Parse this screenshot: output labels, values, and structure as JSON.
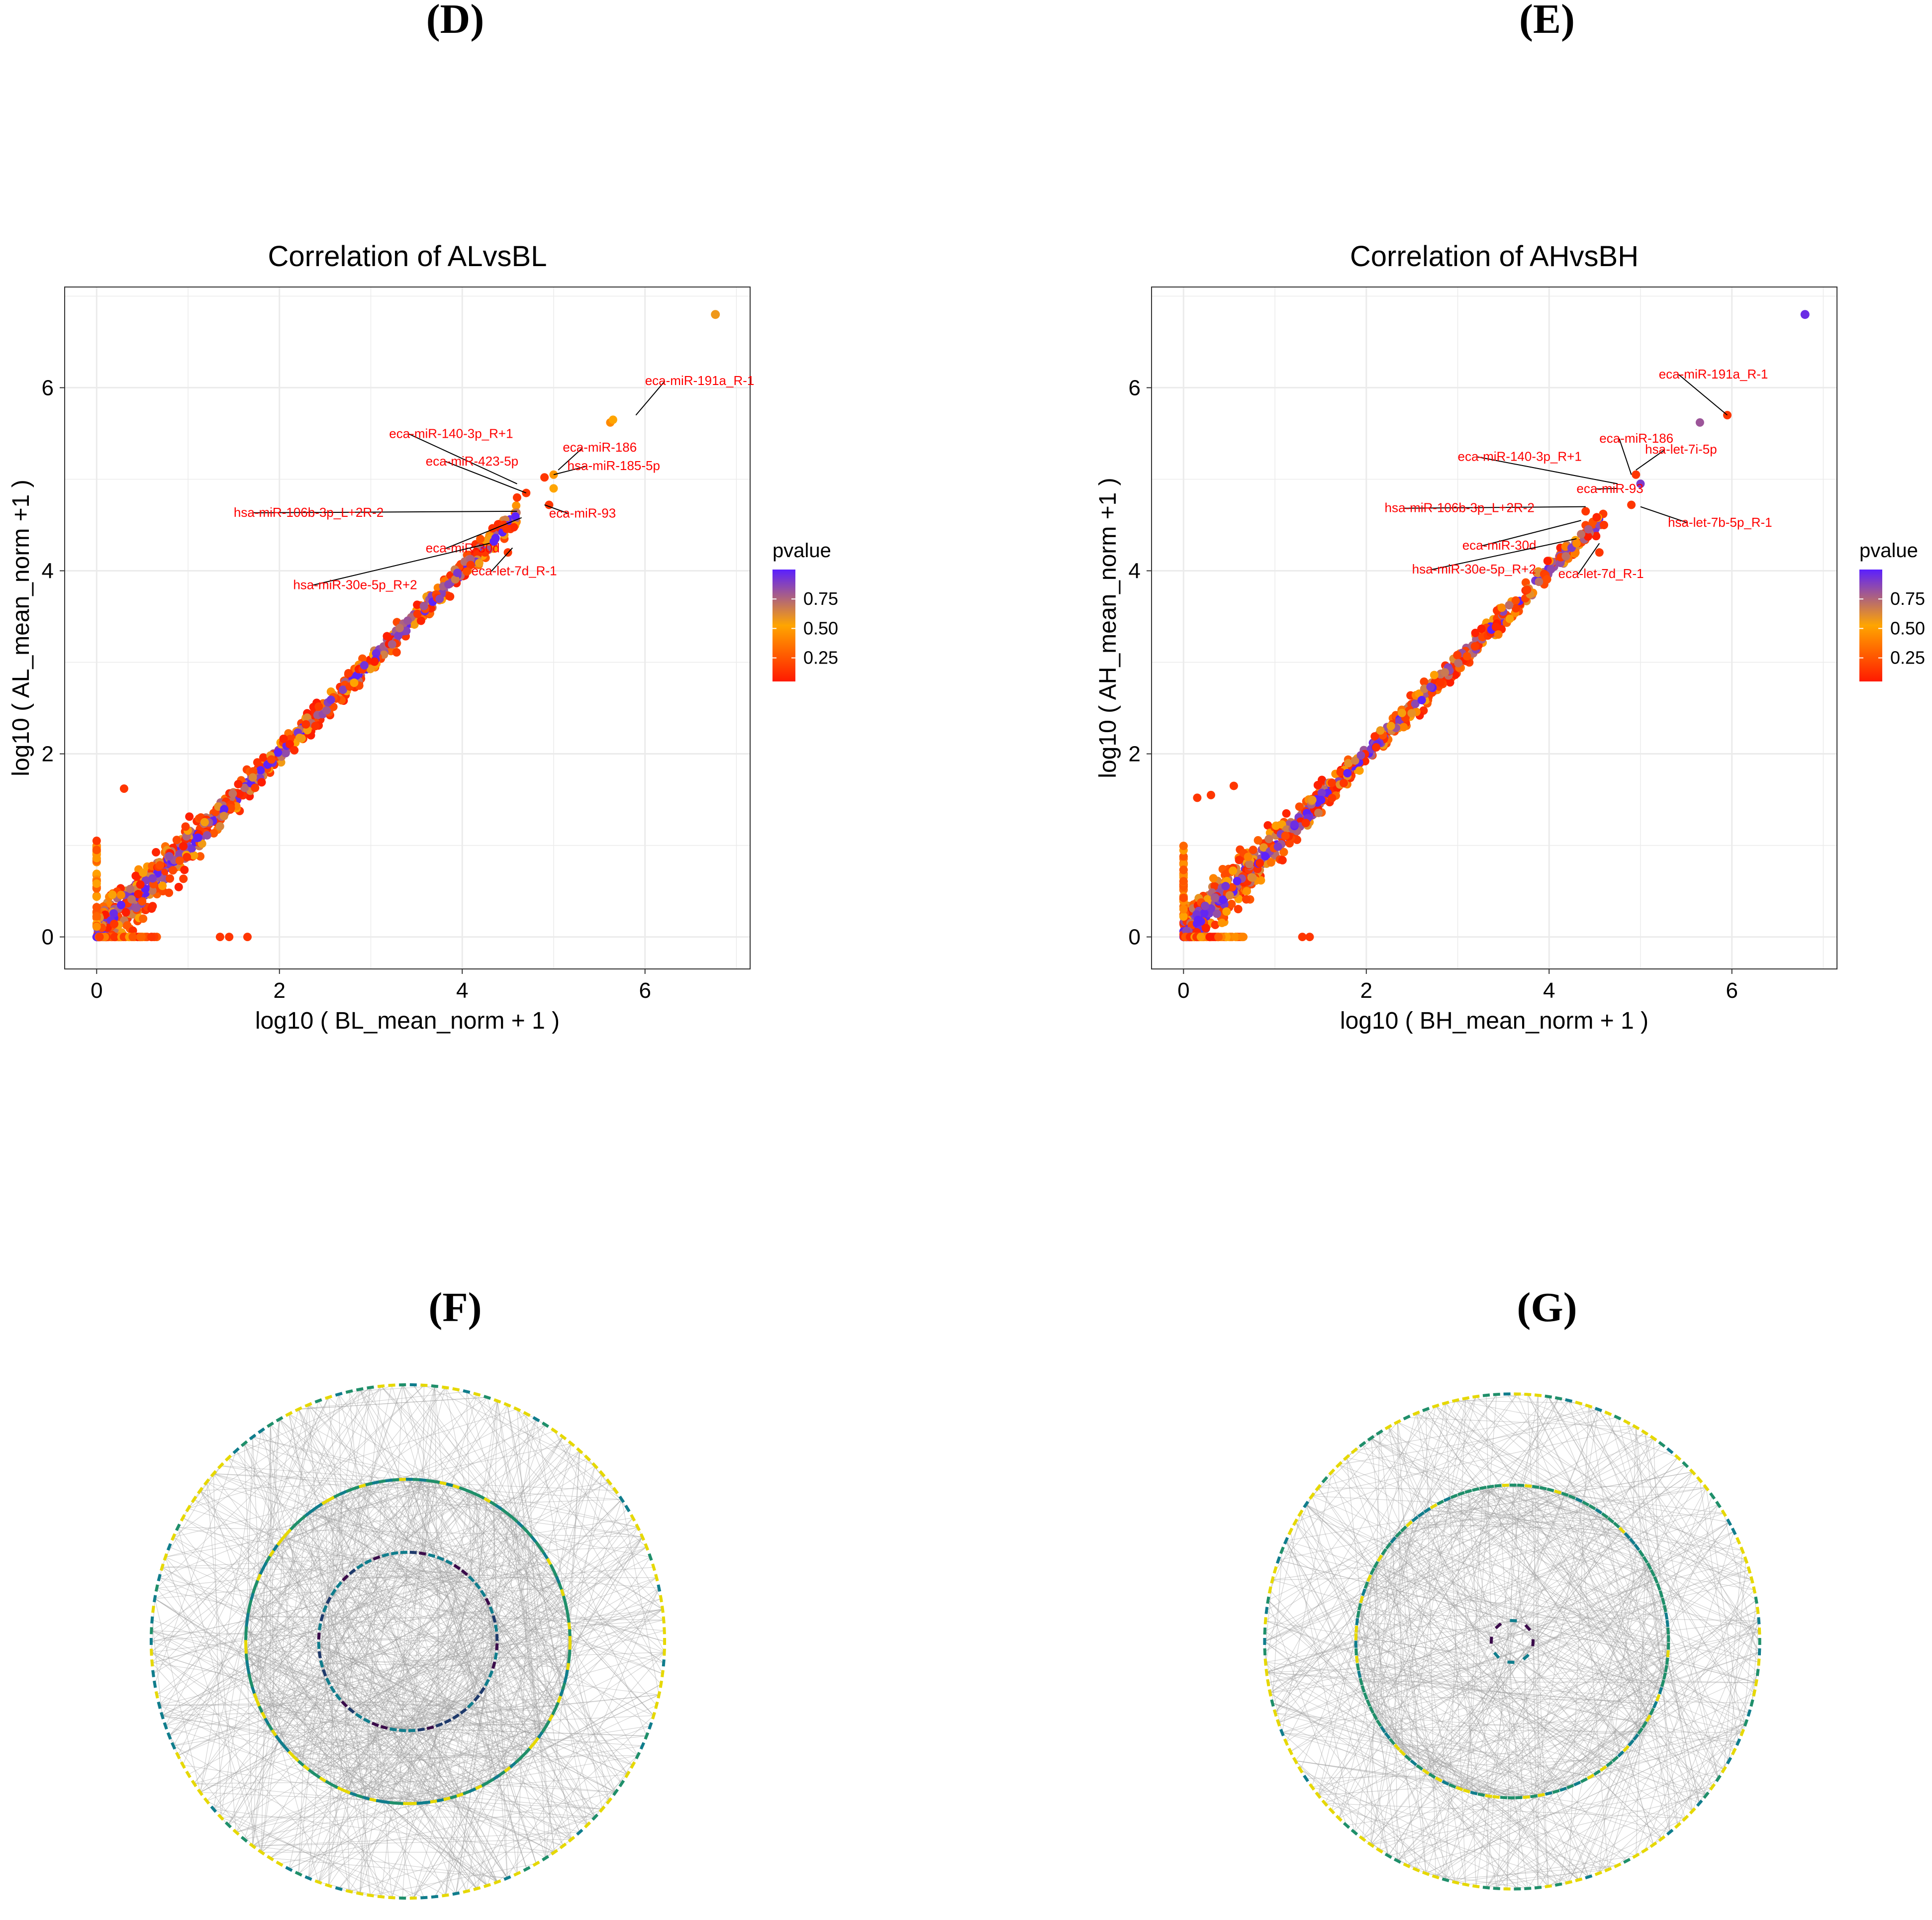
{
  "panels": {
    "d_label": "(D)",
    "e_label": "(E)",
    "f_label": "(F)",
    "g_label": "(G)"
  },
  "colors": {
    "low": "#ff1a00",
    "mid": "#ffa500",
    "high": "#5a1fff",
    "label": "#ff0000",
    "grid": "#ebebeb",
    "edge": "#9e9e9e",
    "node_yellow": "#e6d800",
    "node_green": "#1f8f6a",
    "node_teal": "#107d8c",
    "node_navy": "#1f3a6b",
    "node_purple": "#3a0b4a"
  },
  "chart_data": [
    {
      "type": "scatter",
      "title": "Correlation of ALvsBL",
      "xlabel": "log10 ( BL_mean_norm + 1 )",
      "ylabel": "log10 ( AL_mean_norm +1  )",
      "xlim": [
        -0.35,
        7.15
      ],
      "ylim": [
        -0.35,
        7.1
      ],
      "xticks": [
        0,
        2,
        4,
        6
      ],
      "yticks": [
        0,
        2,
        4,
        6
      ],
      "legend": {
        "title": "pvalue",
        "ticks": [
          "0.75",
          "0.50",
          "0.25"
        ],
        "position": "right"
      },
      "highlight": {
        "x": 6.77,
        "y": 6.8,
        "pvalue": 0.55
      },
      "labels": [
        {
          "text": "eca-miR-191a_R-1",
          "x": 5.9,
          "y": 5.7
        },
        {
          "text": "eca-miR-186",
          "x": 5.05,
          "y": 5.1
        },
        {
          "text": "eca-miR-140-3p_R+1",
          "x": 4.6,
          "y": 4.95
        },
        {
          "text": "eca-miR-423-5p",
          "x": 4.7,
          "y": 4.85
        },
        {
          "text": "hsa-miR-185-5p",
          "x": 5.0,
          "y": 5.05
        },
        {
          "text": "hsa-miR-106b-3p_L+2R-2",
          "x": 4.6,
          "y": 4.65
        },
        {
          "text": "eca-miR-93",
          "x": 4.9,
          "y": 4.72
        },
        {
          "text": "eca-miR-30d",
          "x": 4.65,
          "y": 4.58
        },
        {
          "text": "hsa-miR-30e-5p_R+2",
          "x": 4.3,
          "y": 4.3
        },
        {
          "text": "eca-let-7d_R-1",
          "x": 4.55,
          "y": 4.25
        }
      ],
      "outliers": [
        {
          "x": 0.3,
          "y": 1.62,
          "pvalue": 0.1
        },
        {
          "x": 1.35,
          "y": 0.0,
          "pvalue": 0.1
        },
        {
          "x": 1.65,
          "y": 0.0,
          "pvalue": 0.1
        },
        {
          "x": 1.45,
          "y": 0.0,
          "pvalue": 0.1
        },
        {
          "x": 0.0,
          "y": 1.05,
          "pvalue": 0.1
        },
        {
          "x": 0.0,
          "y": 0.95,
          "pvalue": 0.2
        },
        {
          "x": 4.25,
          "y": 4.2,
          "pvalue": 0.1
        },
        {
          "x": 4.5,
          "y": 4.2,
          "pvalue": 0.1
        },
        {
          "x": 4.95,
          "y": 4.72,
          "pvalue": 0.1
        },
        {
          "x": 5.62,
          "y": 5.62,
          "pvalue": 0.4
        },
        {
          "x": 5.65,
          "y": 5.65,
          "pvalue": 0.5
        },
        {
          "x": 4.45,
          "y": 4.5,
          "pvalue": 0.1
        },
        {
          "x": 4.6,
          "y": 4.8,
          "pvalue": 0.1
        },
        {
          "x": 4.7,
          "y": 4.85,
          "pvalue": 0.1
        },
        {
          "x": 4.9,
          "y": 5.02,
          "pvalue": 0.1
        },
        {
          "x": 5.0,
          "y": 4.9,
          "pvalue": 0.5
        },
        {
          "x": 5.0,
          "y": 5.05,
          "pvalue": 0.45
        }
      ],
      "bulk": {
        "seed": 11,
        "n": 880
      }
    },
    {
      "type": "scatter",
      "title": "Correlation of AHvsBH",
      "xlabel": "log10 ( BH_mean_norm + 1 )",
      "ylabel": "log10 ( AH_mean_norm +1  )",
      "xlim": [
        -0.35,
        7.15
      ],
      "ylim": [
        -0.35,
        7.1
      ],
      "xticks": [
        0,
        2,
        4,
        6
      ],
      "yticks": [
        0,
        2,
        4,
        6
      ],
      "legend": {
        "title": "pvalue",
        "ticks": [
          "0.75",
          "0.50",
          "0.25"
        ],
        "position": "right"
      },
      "highlight": {
        "x": 6.8,
        "y": 6.8,
        "pvalue": 0.95
      },
      "labels": [
        {
          "text": "eca-miR-191a_R-1",
          "x": 5.95,
          "y": 5.7
        },
        {
          "text": "eca-miR-186",
          "x": 4.9,
          "y": 5.05
        },
        {
          "text": "eca-miR-140-3p_R+1",
          "x": 4.75,
          "y": 4.95
        },
        {
          "text": "hsa-let-7i-5p",
          "x": 4.95,
          "y": 5.1
        },
        {
          "text": "hsa-miR-106b-3p_L+2R-2",
          "x": 4.4,
          "y": 4.7
        },
        {
          "text": "eca-miR-93",
          "x": 4.75,
          "y": 4.9
        },
        {
          "text": "hsa-let-7b-5p_R-1",
          "x": 5.0,
          "y": 4.7
        },
        {
          "text": "eca-miR-30d",
          "x": 4.35,
          "y": 4.55
        },
        {
          "text": "hsa-miR-30e-5p_R+2",
          "x": 4.3,
          "y": 4.35
        },
        {
          "text": "eca-let-7d_R-1",
          "x": 4.55,
          "y": 4.3
        }
      ],
      "outliers": [
        {
          "x": 0.15,
          "y": 1.52,
          "pvalue": 0.1
        },
        {
          "x": 0.3,
          "y": 1.55,
          "pvalue": 0.1
        },
        {
          "x": 1.3,
          "y": 0.0,
          "pvalue": 0.1
        },
        {
          "x": 1.38,
          "y": 0.0,
          "pvalue": 0.1
        },
        {
          "x": 0.55,
          "y": 1.65,
          "pvalue": 0.1
        },
        {
          "x": 5.65,
          "y": 5.62,
          "pvalue": 0.8
        },
        {
          "x": 5.95,
          "y": 5.7,
          "pvalue": 0.1
        },
        {
          "x": 4.95,
          "y": 5.05,
          "pvalue": 0.1
        },
        {
          "x": 5.0,
          "y": 4.95,
          "pvalue": 0.9
        },
        {
          "x": 4.9,
          "y": 4.72,
          "pvalue": 0.1
        },
        {
          "x": 4.6,
          "y": 4.5,
          "pvalue": 0.1
        },
        {
          "x": 4.4,
          "y": 4.65,
          "pvalue": 0.1
        },
        {
          "x": 4.55,
          "y": 4.2,
          "pvalue": 0.1
        },
        {
          "x": 4.3,
          "y": 4.3,
          "pvalue": 0.4
        },
        {
          "x": 4.35,
          "y": 4.4,
          "pvalue": 0.7
        }
      ],
      "bulk": {
        "seed": 29,
        "n": 880
      }
    }
  ],
  "networks": [
    {
      "name": "F",
      "rings": [
        {
          "r": 0.95,
          "n": 150
        },
        {
          "r": 0.6,
          "n": 150
        },
        {
          "r": 0.33,
          "n": 60
        }
      ],
      "edges": 900,
      "seed": 5
    },
    {
      "name": "G",
      "rings": [
        {
          "r": 0.95,
          "n": 150
        },
        {
          "r": 0.6,
          "n": 130
        },
        {
          "r": 0.08,
          "n": 8
        }
      ],
      "edges": 700,
      "seed": 17
    }
  ]
}
